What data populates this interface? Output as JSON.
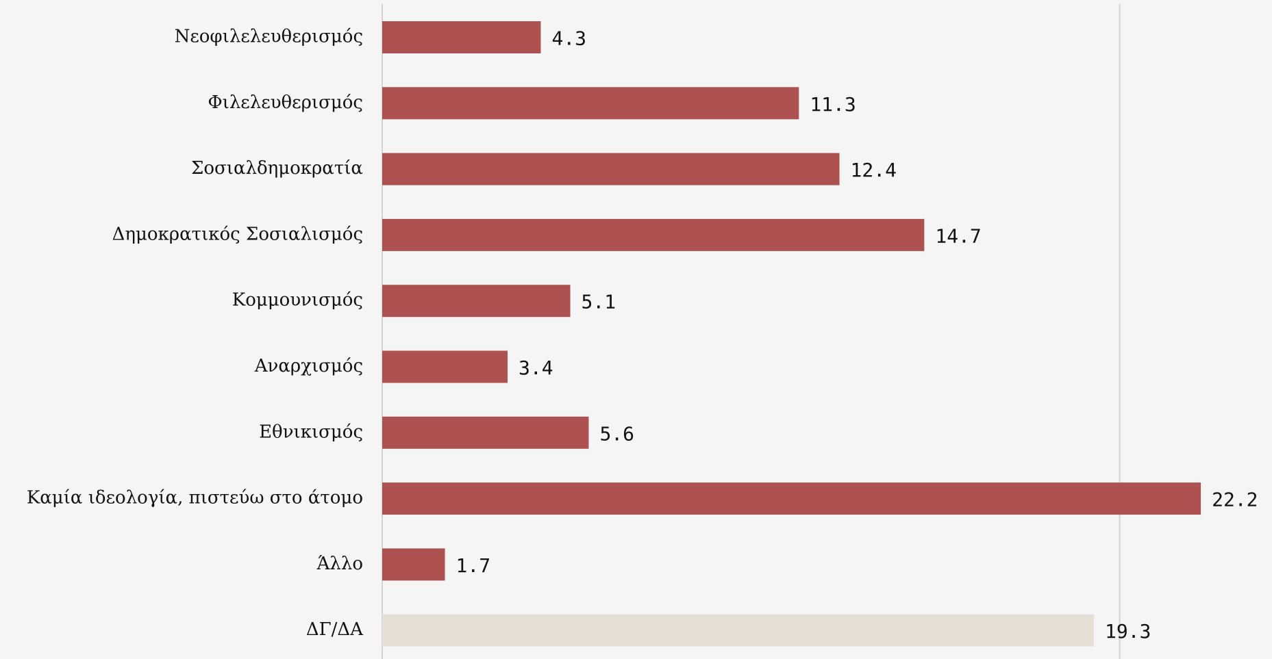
{
  "chart_data": {
    "type": "barh",
    "categories": [
      "Νεοφιλελευθερισμός",
      "Φιλελευθερισμός",
      "Σοσιαλδημοκρατία",
      "Δημοκρατικός Σοσιαλισμός",
      "Κομμουνισμός",
      "Αναρχισμός",
      "Εθνικισμός",
      "Καμία ιδεολογία, πιστεύω στο άτομο",
      "Άλλο",
      "ΔΓ/ΔΑ"
    ],
    "values": [
      4.3,
      11.3,
      12.4,
      14.7,
      5.1,
      3.4,
      5.6,
      22.2,
      1.7,
      19.3
    ],
    "colors": [
      "#ad5250",
      "#ad5250",
      "#ad5250",
      "#ad5250",
      "#ad5250",
      "#ad5250",
      "#ad5250",
      "#ad5250",
      "#ad5250",
      "#e6dfd6"
    ],
    "xlim": [
      0,
      24
    ],
    "xticks": [
      0,
      20
    ],
    "grid": true
  }
}
